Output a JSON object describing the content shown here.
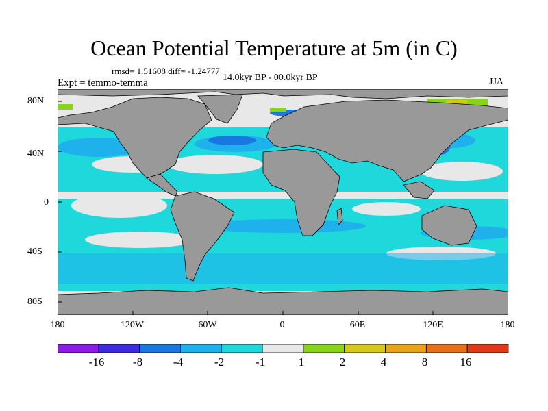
{
  "title": "Ocean Potential Temperature at 5m (in C)",
  "stats": "rmsd= 1.51608 diff= -1.24777",
  "period": "14.0kyr BP - 00.0kyr BP",
  "experiment": "Expt = temmo-temma",
  "season": "JJA",
  "map": {
    "projection": "cylindrical equidistant",
    "lon_range": [
      -180,
      180
    ],
    "lat_range": [
      -90,
      90
    ],
    "land_color": "#999999",
    "y_tick_labels": [
      "80N",
      "40N",
      "0",
      "40S",
      "80S"
    ],
    "x_tick_labels": [
      "180",
      "120W",
      "60W",
      "0",
      "60E",
      "120E",
      "180"
    ]
  },
  "colorbar": {
    "colors": [
      "#8c1be8",
      "#3c2be0",
      "#1877e0",
      "#1eb1ec",
      "#1ed8dc",
      "#e8e8e8",
      "#88d418",
      "#d4c818",
      "#e8a418",
      "#e87018",
      "#e03818"
    ],
    "labels": [
      "-16",
      "-8",
      "-4",
      "-2",
      "-1",
      "1",
      "2",
      "4",
      "8",
      "16"
    ]
  }
}
